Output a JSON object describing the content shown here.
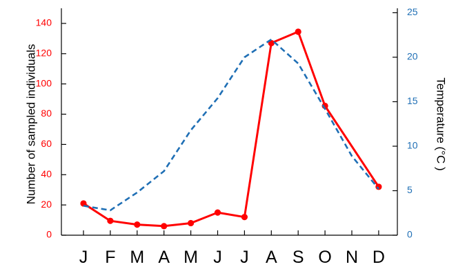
{
  "chart_data": {
    "type": "line",
    "title": "",
    "categories": [
      "J",
      "F",
      "M",
      "A",
      "M",
      "J",
      "J",
      "A",
      "S",
      "O",
      "N",
      "D"
    ],
    "ylabel_left": "Number of sampled individuals",
    "ylabel_right": "Temperature (°C )",
    "ylim_left": [
      0,
      150
    ],
    "ylim_right": [
      0,
      25.5
    ],
    "yticks_left": [
      "0",
      "20",
      "40",
      "60",
      "80",
      "100",
      "120",
      "140"
    ],
    "yticks_right": [
      "0",
      "5",
      "10",
      "15",
      "20",
      "25"
    ],
    "grid": false,
    "series": [
      {
        "axis": "left",
        "style": "solid",
        "markers": true,
        "color": "#ff0000",
        "values": [
          21,
          9.5,
          7,
          6,
          8,
          15,
          12,
          127,
          134.5,
          85.5,
          null,
          32
        ]
      },
      {
        "axis": "right",
        "style": "dashed",
        "markers": false,
        "color": "#1f6fb5",
        "values": [
          3.3,
          2.8,
          4.8,
          7.2,
          11.8,
          15.4,
          20,
          22,
          19.3,
          14.2,
          8.9,
          5.2
        ]
      }
    ],
    "left_axis_color": "#ff0000",
    "right_axis_color": "#1f6fb5"
  }
}
